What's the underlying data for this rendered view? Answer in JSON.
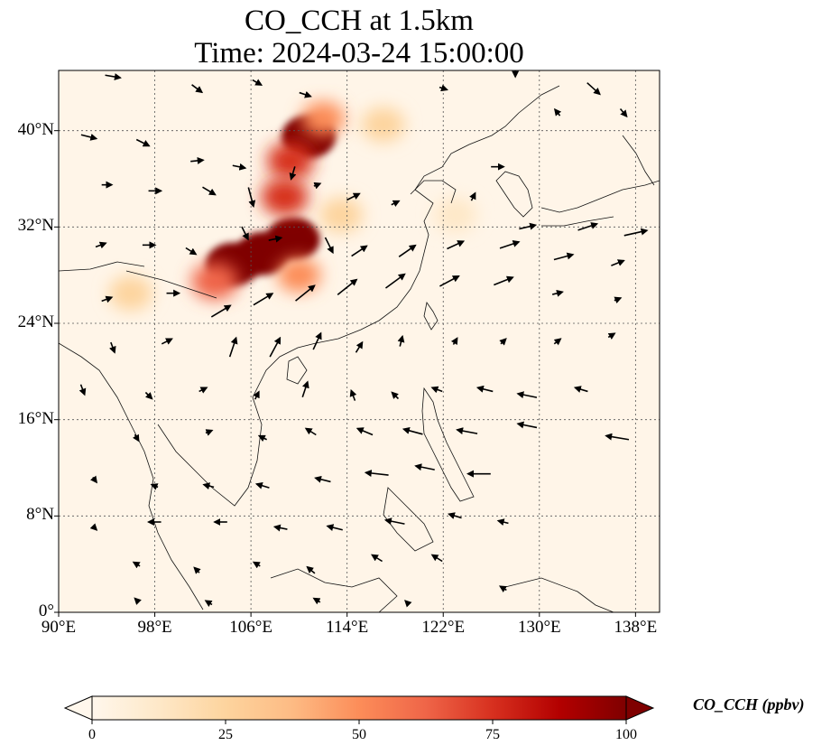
{
  "title": {
    "line1": "CO_CCH at 1.5km",
    "line2": "Time: 2024-03-24 15:00:00"
  },
  "map": {
    "extent": {
      "lon": [
        90,
        140
      ],
      "lat": [
        0,
        45
      ]
    },
    "lat_ticks": [
      {
        "value": 0,
        "label": "0°"
      },
      {
        "value": 8,
        "label": "8°N"
      },
      {
        "value": 16,
        "label": "16°N"
      },
      {
        "value": 24,
        "label": "24°N"
      },
      {
        "value": 32,
        "label": "32°N"
      },
      {
        "value": 40,
        "label": "40°N"
      }
    ],
    "lon_ticks": [
      {
        "value": 90,
        "label": "90°E"
      },
      {
        "value": 98,
        "label": "98°E"
      },
      {
        "value": 106,
        "label": "106°E"
      },
      {
        "value": 114,
        "label": "114°E"
      },
      {
        "value": 122,
        "label": "122°E"
      },
      {
        "value": 130,
        "label": "130°E"
      },
      {
        "value": 138,
        "label": "138°E"
      }
    ],
    "gridlines": "dotted",
    "colormap": "OrRd",
    "plumes": [
      {
        "lon": 104.5,
        "lat": 28.9,
        "value": 100
      },
      {
        "lon": 107.0,
        "lat": 29.8,
        "value": 100
      },
      {
        "lon": 109.5,
        "lat": 31.0,
        "value": 95
      },
      {
        "lon": 110.8,
        "lat": 39.5,
        "value": 95
      },
      {
        "lon": 109.3,
        "lat": 37.5,
        "value": 80
      },
      {
        "lon": 108.8,
        "lat": 34.5,
        "value": 70
      },
      {
        "lon": 112.0,
        "lat": 41.0,
        "value": 55
      },
      {
        "lon": 103.0,
        "lat": 27.5,
        "value": 60
      },
      {
        "lon": 117.0,
        "lat": 40.5,
        "value": 30
      },
      {
        "lon": 110.0,
        "lat": 28.0,
        "value": 45
      },
      {
        "lon": 96.0,
        "lat": 26.5,
        "value": 20
      },
      {
        "lon": 113.5,
        "lat": 33.0,
        "value": 25
      },
      {
        "lon": 123.0,
        "lat": 33.0,
        "value": 15
      }
    ],
    "wind_arrows": [
      [
        94.5,
        44.5,
        1.2,
        -0.2
      ],
      [
        101.5,
        43.5,
        0.8,
        -0.6
      ],
      [
        106.5,
        44.0,
        0.7,
        -0.4
      ],
      [
        110.5,
        43.0,
        0.9,
        -0.3
      ],
      [
        122.0,
        43.5,
        0.6,
        -0.2
      ],
      [
        128.0,
        45.0,
        0.0,
        -1.0
      ],
      [
        131.5,
        41.5,
        -0.4,
        0.5
      ],
      [
        134.5,
        43.5,
        1.0,
        -0.9
      ],
      [
        137.0,
        41.5,
        0.5,
        -0.6
      ],
      [
        92.5,
        39.5,
        1.2,
        -0.3
      ],
      [
        97.0,
        39.0,
        1.0,
        -0.5
      ],
      [
        101.5,
        37.5,
        1.0,
        0.1
      ],
      [
        105.0,
        37.0,
        1.0,
        -0.2
      ],
      [
        94.0,
        35.5,
        0.8,
        0.0
      ],
      [
        98.0,
        35.0,
        1.0,
        0.0
      ],
      [
        102.5,
        35.0,
        1.0,
        -0.6
      ],
      [
        106.0,
        34.5,
        0.4,
        -1.5
      ],
      [
        109.5,
        36.5,
        -0.3,
        -1.0
      ],
      [
        111.5,
        35.5,
        0.5,
        0.2
      ],
      [
        114.5,
        34.5,
        1.0,
        0.5
      ],
      [
        118.0,
        34.0,
        0.6,
        0.3
      ],
      [
        124.5,
        34.5,
        0.3,
        0.6
      ],
      [
        126.5,
        37.0,
        1.0,
        0.0
      ],
      [
        129.0,
        32.0,
        1.3,
        0.3
      ],
      [
        134.0,
        32.0,
        1.5,
        0.5
      ],
      [
        138.0,
        31.5,
        1.8,
        0.4
      ],
      [
        93.5,
        30.5,
        0.8,
        0.3
      ],
      [
        97.5,
        30.5,
        1.0,
        0.0
      ],
      [
        101.0,
        30.0,
        0.8,
        -0.5
      ],
      [
        105.5,
        31.5,
        0.5,
        -1.0
      ],
      [
        108.0,
        31.0,
        1.0,
        0.2
      ],
      [
        112.5,
        30.5,
        0.6,
        -1.2
      ],
      [
        115.0,
        30.0,
        1.2,
        0.8
      ],
      [
        119.0,
        30.0,
        1.3,
        0.9
      ],
      [
        123.0,
        30.5,
        1.3,
        0.6
      ],
      [
        127.5,
        30.5,
        1.5,
        0.5
      ],
      [
        132.0,
        29.5,
        1.5,
        0.4
      ],
      [
        136.5,
        29.0,
        1.0,
        0.4
      ],
      [
        94.0,
        26.0,
        0.8,
        0.3
      ],
      [
        99.5,
        26.5,
        1.0,
        0.0
      ],
      [
        103.5,
        25.0,
        1.5,
        0.9
      ],
      [
        107.0,
        26.0,
        1.5,
        0.9
      ],
      [
        110.5,
        26.5,
        1.5,
        1.2
      ],
      [
        114.0,
        27.0,
        1.5,
        1.2
      ],
      [
        118.0,
        27.5,
        1.5,
        1.1
      ],
      [
        122.5,
        27.5,
        1.5,
        0.8
      ],
      [
        127.0,
        27.5,
        1.5,
        0.6
      ],
      [
        131.5,
        26.5,
        0.8,
        0.2
      ],
      [
        136.5,
        26.0,
        0.5,
        0.2
      ],
      [
        94.5,
        22.0,
        0.3,
        -0.8
      ],
      [
        99.0,
        22.5,
        0.8,
        0.4
      ],
      [
        104.5,
        22.0,
        0.5,
        1.5
      ],
      [
        108.0,
        22.0,
        0.8,
        1.5
      ],
      [
        111.5,
        22.5,
        0.6,
        1.3
      ],
      [
        115.0,
        22.0,
        0.5,
        0.8
      ],
      [
        118.5,
        22.5,
        0.2,
        0.8
      ],
      [
        123.0,
        22.5,
        0.3,
        0.5
      ],
      [
        127.0,
        22.5,
        0.4,
        0.4
      ],
      [
        131.5,
        22.5,
        0.5,
        0.4
      ],
      [
        136.0,
        23.0,
        0.5,
        0.3
      ],
      [
        92.0,
        18.5,
        0.3,
        -0.8
      ],
      [
        97.5,
        18.0,
        0.5,
        -0.5
      ],
      [
        102.0,
        18.5,
        0.6,
        0.3
      ],
      [
        106.5,
        18.0,
        0.3,
        0.6
      ],
      [
        110.5,
        18.5,
        0.4,
        1.2
      ],
      [
        114.5,
        18.0,
        -0.3,
        0.8
      ],
      [
        118.0,
        18.0,
        -0.5,
        0.5
      ],
      [
        121.5,
        18.5,
        -0.8,
        0.3
      ],
      [
        125.5,
        18.5,
        -1.2,
        0.3
      ],
      [
        129.0,
        18.0,
        -1.5,
        0.3
      ],
      [
        133.5,
        18.5,
        -1.0,
        0.3
      ],
      [
        96.5,
        14.5,
        0.3,
        -0.5
      ],
      [
        102.5,
        15.0,
        0.5,
        0.2
      ],
      [
        107.0,
        14.5,
        -0.6,
        0.3
      ],
      [
        111.0,
        15.0,
        -0.8,
        0.5
      ],
      [
        115.5,
        15.0,
        -1.2,
        0.5
      ],
      [
        119.5,
        15.0,
        -1.5,
        0.4
      ],
      [
        124.0,
        15.0,
        -1.6,
        0.3
      ],
      [
        129.0,
        15.5,
        -1.5,
        0.3
      ],
      [
        136.5,
        14.5,
        -1.8,
        0.3
      ],
      [
        93.0,
        11.0,
        0.3,
        -0.4
      ],
      [
        98.0,
        10.5,
        -0.5,
        0.2
      ],
      [
        102.5,
        10.5,
        -0.8,
        0.2
      ],
      [
        107.0,
        10.5,
        -1.0,
        0.3
      ],
      [
        112.0,
        11.0,
        -1.2,
        0.3
      ],
      [
        116.5,
        11.5,
        -1.8,
        0.2
      ],
      [
        120.5,
        12.0,
        -1.5,
        0.3
      ],
      [
        125.0,
        11.5,
        -1.8,
        0.0
      ],
      [
        93.0,
        7.0,
        0.3,
        -0.3
      ],
      [
        98.0,
        7.5,
        -1.0,
        0.0
      ],
      [
        103.5,
        7.5,
        -1.0,
        0.0
      ],
      [
        108.5,
        7.0,
        -1.0,
        0.2
      ],
      [
        113.0,
        7.0,
        -1.2,
        0.3
      ],
      [
        118.0,
        7.5,
        -1.5,
        0.3
      ],
      [
        123.0,
        8.0,
        -1.0,
        0.3
      ],
      [
        127.0,
        7.5,
        -0.8,
        0.2
      ],
      [
        96.5,
        4.0,
        -0.5,
        0.3
      ],
      [
        101.5,
        3.5,
        -0.4,
        0.4
      ],
      [
        106.5,
        4.0,
        -0.5,
        0.3
      ],
      [
        111.0,
        3.5,
        -0.6,
        0.5
      ],
      [
        116.5,
        4.5,
        -0.8,
        0.5
      ],
      [
        121.5,
        4.5,
        -0.8,
        0.5
      ],
      [
        127.0,
        2.0,
        -0.5,
        0.3
      ],
      [
        96.5,
        1.0,
        -0.3,
        0.3
      ],
      [
        102.5,
        0.8,
        -0.5,
        0.3
      ],
      [
        111.5,
        1.0,
        -0.5,
        0.3
      ],
      [
        119.0,
        0.8,
        -0.3,
        0.3
      ]
    ]
  },
  "colorbar": {
    "label": "CO_CCH (ppbv)",
    "min": 0,
    "max": 100,
    "extend": "both",
    "ticks": [
      {
        "value": 0,
        "label": "0"
      },
      {
        "value": 25,
        "label": "25"
      },
      {
        "value": 50,
        "label": "50"
      },
      {
        "value": 75,
        "label": "75"
      },
      {
        "value": 100,
        "label": "100"
      }
    ],
    "colors": [
      "#fff7ec",
      "#fee8c8",
      "#fdd49e",
      "#fdbb84",
      "#fc8d59",
      "#ef6548",
      "#d7301f",
      "#b30000",
      "#7f0000"
    ]
  }
}
